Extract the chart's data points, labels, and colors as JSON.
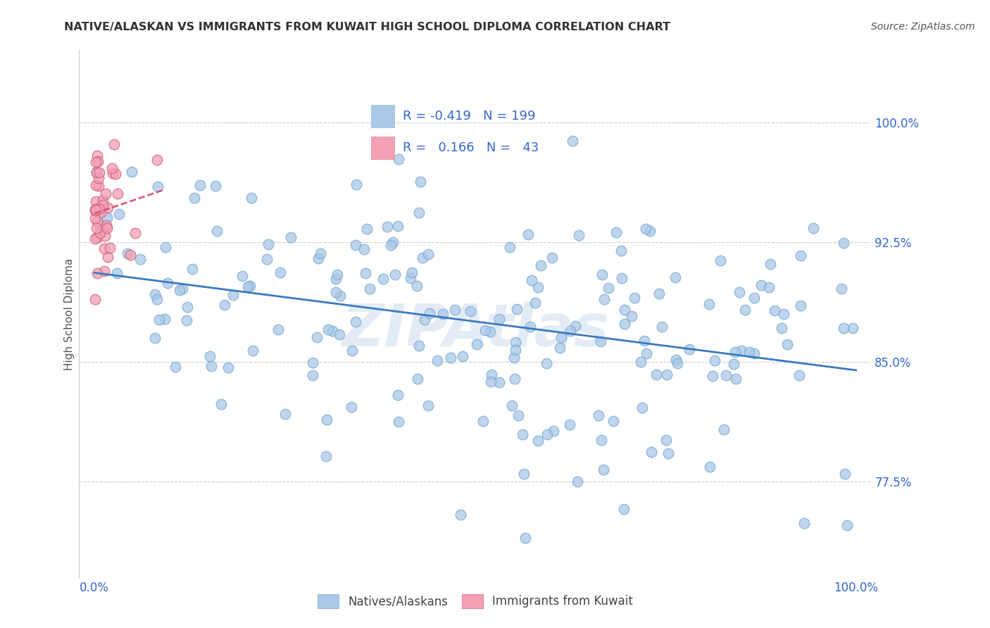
{
  "title": "NATIVE/ALASKAN VS IMMIGRANTS FROM KUWAIT HIGH SCHOOL DIPLOMA CORRELATION CHART",
  "source": "Source: ZipAtlas.com",
  "ylabel": "High School Diploma",
  "xlim": [
    -0.02,
    1.02
  ],
  "ylim": [
    0.715,
    1.045
  ],
  "yticks": [
    0.775,
    0.85,
    0.925,
    1.0
  ],
  "ytick_labels": [
    "77.5%",
    "85.0%",
    "92.5%",
    "100.0%"
  ],
  "xticks": [
    0.0,
    1.0
  ],
  "xtick_labels": [
    "0.0%",
    "100.0%"
  ],
  "blue_R": "-0.419",
  "blue_N": "199",
  "pink_R": "0.166",
  "pink_N": "43",
  "blue_color": "#aac8e8",
  "pink_color": "#f4a0b4",
  "blue_line_color": "#3a7abf",
  "pink_line_color": "#d45070",
  "watermark": "ZIPAtlas",
  "background_color": "#ffffff",
  "grid_color": "#cccccc",
  "legend_box_blue": "#aac8e8",
  "legend_box_pink": "#f4a0b4",
  "legend_text_color": "#3366cc",
  "title_color": "#333333",
  "tick_color": "#3366cc",
  "ylabel_color": "#555555"
}
